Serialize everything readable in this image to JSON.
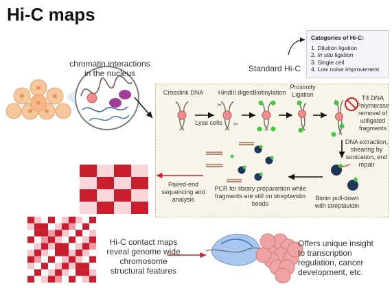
{
  "title": "Hi-C maps",
  "nucleus_label": "chromatin interactions\nin the nucleus",
  "standard_label": "Standard Hi-C",
  "categories": {
    "title": "Categories of Hi-C:",
    "items": [
      {
        "num": "1.",
        "text": "Dilution ligation",
        "italic": ""
      },
      {
        "num": "2.",
        "text": " ligation",
        "italic": "In situ"
      },
      {
        "num": "3.",
        "text": "Single cell",
        "italic": ""
      },
      {
        "num": "4.",
        "text": "Low noise improvement",
        "italic": ""
      }
    ]
  },
  "steps": {
    "crosslink": "Crosslink DNA",
    "lyse": "Lyse cells",
    "digest": "HindIII digest",
    "biotin": "Biotinylation",
    "proximity": "Proximity\nLigation",
    "t4": "T4 DNA\nPolymerase\nremoval of\nunligated\nfragments",
    "extraction": "DNA extraction,\nshearing by\nsonication, end\nrepair",
    "pulldown": "Biotin pull-down\nwith streptavidin",
    "pcr": "PCR for library preparartion while\nfragments are still on streptavidin\nbeads",
    "paired": "Paired-end\nsequencing and\nanalysis"
  },
  "contact_label": "Hi-C contact maps\nreveal genome wide\nchromosome\nstructural features",
  "insight_label": "Offers unique insight\nto transcription\nregulation, cancer\ndevelopment, etc.",
  "colors": {
    "dark_red": "#c81e2e",
    "light_pink": "#f6c6cc",
    "mid_pink": "#ee9aa4"
  }
}
